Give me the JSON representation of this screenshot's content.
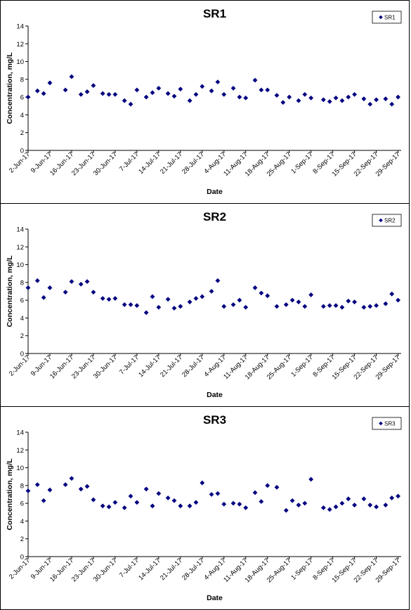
{
  "chart_data": [
    {
      "type": "scatter",
      "title": "SR1",
      "xlabel": "Date",
      "ylabel": "Concentration, mg/L",
      "ylim": [
        0,
        14
      ],
      "yticks": [
        0,
        2,
        4,
        6,
        8,
        10,
        12,
        14
      ],
      "xlim": [
        "2017-06-02",
        "2017-09-30"
      ],
      "xticks": [
        "2-Jun-17",
        "9-Jun-17",
        "16-Jun-17",
        "23-Jun-17",
        "30-Jun-17",
        "7-Jul-17",
        "14-Jul-17",
        "21-Jul-17",
        "28-Jul-17",
        "4-Aug-17",
        "11-Aug-17",
        "18-Aug-17",
        "25-Aug-17",
        "1-Sep-17",
        "8-Sep-17",
        "15-Sep-17",
        "22-Sep-17",
        "29-Sep-17"
      ],
      "legend_position": "top-right",
      "series": [
        {
          "name": "SR1",
          "color": "#000080",
          "points": [
            [
              "2017-06-02",
              6.0
            ],
            [
              "2017-06-05",
              6.7
            ],
            [
              "2017-06-07",
              6.4
            ],
            [
              "2017-06-09",
              7.6
            ],
            [
              "2017-06-14",
              6.8
            ],
            [
              "2017-06-16",
              8.3
            ],
            [
              "2017-06-19",
              6.3
            ],
            [
              "2017-06-21",
              6.6
            ],
            [
              "2017-06-23",
              7.3
            ],
            [
              "2017-06-26",
              6.4
            ],
            [
              "2017-06-28",
              6.3
            ],
            [
              "2017-06-30",
              6.3
            ],
            [
              "2017-07-03",
              5.6
            ],
            [
              "2017-07-05",
              5.2
            ],
            [
              "2017-07-07",
              6.8
            ],
            [
              "2017-07-10",
              6.0
            ],
            [
              "2017-07-12",
              6.5
            ],
            [
              "2017-07-14",
              7.0
            ],
            [
              "2017-07-17",
              6.4
            ],
            [
              "2017-07-19",
              6.1
            ],
            [
              "2017-07-21",
              6.9
            ],
            [
              "2017-07-24",
              5.6
            ],
            [
              "2017-07-26",
              6.3
            ],
            [
              "2017-07-28",
              7.2
            ],
            [
              "2017-07-31",
              6.7
            ],
            [
              "2017-08-02",
              7.7
            ],
            [
              "2017-08-04",
              6.3
            ],
            [
              "2017-08-07",
              7.0
            ],
            [
              "2017-08-09",
              6.0
            ],
            [
              "2017-08-11",
              5.9
            ],
            [
              "2017-08-14",
              7.9
            ],
            [
              "2017-08-16",
              6.8
            ],
            [
              "2017-08-18",
              6.8
            ],
            [
              "2017-08-21",
              6.2
            ],
            [
              "2017-08-23",
              5.4
            ],
            [
              "2017-08-25",
              6.0
            ],
            [
              "2017-08-28",
              5.6
            ],
            [
              "2017-08-30",
              6.3
            ],
            [
              "2017-09-01",
              5.9
            ],
            [
              "2017-09-05",
              5.7
            ],
            [
              "2017-09-07",
              5.5
            ],
            [
              "2017-09-09",
              5.9
            ],
            [
              "2017-09-11",
              5.6
            ],
            [
              "2017-09-13",
              6.0
            ],
            [
              "2017-09-15",
              6.3
            ],
            [
              "2017-09-18",
              5.8
            ],
            [
              "2017-09-20",
              5.2
            ],
            [
              "2017-09-22",
              5.7
            ],
            [
              "2017-09-25",
              5.8
            ],
            [
              "2017-09-27",
              5.2
            ],
            [
              "2017-09-29",
              6.0
            ]
          ]
        }
      ]
    },
    {
      "type": "scatter",
      "title": "SR2",
      "xlabel": "Date",
      "ylabel": "Concentration, mg/L",
      "ylim": [
        0,
        14
      ],
      "yticks": [
        0,
        2,
        4,
        6,
        8,
        10,
        12,
        14
      ],
      "xlim": [
        "2017-06-02",
        "2017-09-30"
      ],
      "xticks": [
        "2-Jun-17",
        "9-Jun-17",
        "16-Jun-17",
        "23-Jun-17",
        "30-Jun-17",
        "7-Jul-17",
        "14-Jul-17",
        "21-Jul-17",
        "28-Jul-17",
        "4-Aug-17",
        "11-Aug-17",
        "18-Aug-17",
        "25-Aug-17",
        "1-Sep-17",
        "8-Sep-17",
        "15-Sep-17",
        "22-Sep-17",
        "29-Sep-17"
      ],
      "legend_position": "top-right",
      "series": [
        {
          "name": "SR2",
          "color": "#000080",
          "points": [
            [
              "2017-06-02",
              7.4
            ],
            [
              "2017-06-05",
              8.2
            ],
            [
              "2017-06-07",
              6.3
            ],
            [
              "2017-06-09",
              7.4
            ],
            [
              "2017-06-14",
              6.9
            ],
            [
              "2017-06-16",
              8.1
            ],
            [
              "2017-06-19",
              7.8
            ],
            [
              "2017-06-21",
              8.1
            ],
            [
              "2017-06-23",
              6.9
            ],
            [
              "2017-06-26",
              6.2
            ],
            [
              "2017-06-28",
              6.1
            ],
            [
              "2017-06-30",
              6.2
            ],
            [
              "2017-07-03",
              5.5
            ],
            [
              "2017-07-05",
              5.5
            ],
            [
              "2017-07-07",
              5.4
            ],
            [
              "2017-07-10",
              4.6
            ],
            [
              "2017-07-12",
              6.4
            ],
            [
              "2017-07-14",
              5.2
            ],
            [
              "2017-07-17",
              6.1
            ],
            [
              "2017-07-19",
              5.1
            ],
            [
              "2017-07-21",
              5.3
            ],
            [
              "2017-07-24",
              5.8
            ],
            [
              "2017-07-26",
              6.2
            ],
            [
              "2017-07-28",
              6.4
            ],
            [
              "2017-07-31",
              7.0
            ],
            [
              "2017-08-02",
              8.2
            ],
            [
              "2017-08-04",
              5.3
            ],
            [
              "2017-08-07",
              5.5
            ],
            [
              "2017-08-09",
              6.0
            ],
            [
              "2017-08-11",
              5.2
            ],
            [
              "2017-08-14",
              7.4
            ],
            [
              "2017-08-16",
              6.8
            ],
            [
              "2017-08-18",
              6.5
            ],
            [
              "2017-08-21",
              5.3
            ],
            [
              "2017-08-24",
              5.5
            ],
            [
              "2017-08-26",
              6.0
            ],
            [
              "2017-08-28",
              5.8
            ],
            [
              "2017-08-30",
              5.3
            ],
            [
              "2017-09-01",
              6.6
            ],
            [
              "2017-09-05",
              5.3
            ],
            [
              "2017-09-07",
              5.4
            ],
            [
              "2017-09-09",
              5.4
            ],
            [
              "2017-09-11",
              5.2
            ],
            [
              "2017-09-13",
              5.9
            ],
            [
              "2017-09-15",
              5.8
            ],
            [
              "2017-09-18",
              5.2
            ],
            [
              "2017-09-20",
              5.3
            ],
            [
              "2017-09-22",
              5.4
            ],
            [
              "2017-09-25",
              5.6
            ],
            [
              "2017-09-27",
              6.7
            ],
            [
              "2017-09-29",
              6.0
            ]
          ]
        }
      ]
    },
    {
      "type": "scatter",
      "title": "SR3",
      "xlabel": "Date",
      "ylabel": "Concentration, mg/L",
      "ylim": [
        0,
        14
      ],
      "yticks": [
        0,
        2,
        4,
        6,
        8,
        10,
        12,
        14
      ],
      "xlim": [
        "2017-06-02",
        "2017-09-30"
      ],
      "xticks": [
        "2-Jun-17",
        "9-Jun-17",
        "16-Jun-17",
        "23-Jun-17",
        "30-Jun-17",
        "7-Jul-17",
        "14-Jul-17",
        "21-Jul-17",
        "28-Jul-17",
        "4-Aug-17",
        "11-Aug-17",
        "18-Aug-17",
        "25-Aug-17",
        "1-Sep-17",
        "8-Sep-17",
        "15-Sep-17",
        "22-Sep-17",
        "29-Sep-17"
      ],
      "legend_position": "top-right",
      "series": [
        {
          "name": "SR3",
          "color": "#000080",
          "points": [
            [
              "2017-06-02",
              7.4
            ],
            [
              "2017-06-05",
              8.1
            ],
            [
              "2017-06-07",
              6.3
            ],
            [
              "2017-06-09",
              7.5
            ],
            [
              "2017-06-14",
              8.1
            ],
            [
              "2017-06-16",
              8.8
            ],
            [
              "2017-06-19",
              7.6
            ],
            [
              "2017-06-21",
              7.9
            ],
            [
              "2017-06-23",
              6.4
            ],
            [
              "2017-06-26",
              5.7
            ],
            [
              "2017-06-28",
              5.6
            ],
            [
              "2017-06-30",
              6.1
            ],
            [
              "2017-07-03",
              5.5
            ],
            [
              "2017-07-05",
              6.8
            ],
            [
              "2017-07-07",
              6.1
            ],
            [
              "2017-07-10",
              7.6
            ],
            [
              "2017-07-12",
              5.7
            ],
            [
              "2017-07-14",
              7.1
            ],
            [
              "2017-07-17",
              6.6
            ],
            [
              "2017-07-19",
              6.3
            ],
            [
              "2017-07-21",
              5.7
            ],
            [
              "2017-07-24",
              5.7
            ],
            [
              "2017-07-26",
              6.1
            ],
            [
              "2017-07-28",
              8.3
            ],
            [
              "2017-07-31",
              7.0
            ],
            [
              "2017-08-02",
              7.1
            ],
            [
              "2017-08-04",
              5.9
            ],
            [
              "2017-08-07",
              6.0
            ],
            [
              "2017-08-09",
              5.9
            ],
            [
              "2017-08-11",
              5.5
            ],
            [
              "2017-08-14",
              7.2
            ],
            [
              "2017-08-16",
              6.2
            ],
            [
              "2017-08-18",
              8.0
            ],
            [
              "2017-08-21",
              7.8
            ],
            [
              "2017-08-24",
              5.2
            ],
            [
              "2017-08-26",
              6.3
            ],
            [
              "2017-08-28",
              5.8
            ],
            [
              "2017-08-30",
              6.0
            ],
            [
              "2017-09-01",
              8.7
            ],
            [
              "2017-09-05",
              5.5
            ],
            [
              "2017-09-07",
              5.3
            ],
            [
              "2017-09-09",
              5.6
            ],
            [
              "2017-09-11",
              6.0
            ],
            [
              "2017-09-13",
              6.5
            ],
            [
              "2017-09-15",
              5.8
            ],
            [
              "2017-09-18",
              6.5
            ],
            [
              "2017-09-20",
              5.8
            ],
            [
              "2017-09-22",
              5.6
            ],
            [
              "2017-09-25",
              5.8
            ],
            [
              "2017-09-27",
              6.6
            ],
            [
              "2017-09-29",
              6.8
            ]
          ]
        }
      ]
    }
  ]
}
